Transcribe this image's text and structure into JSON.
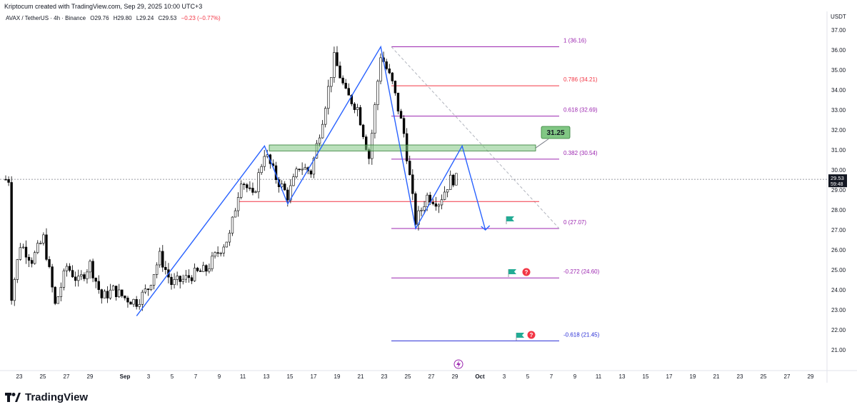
{
  "header": {
    "credit": "Kriptocum created with TradingView.com, Sep 29, 2025 10:00 UTC+3",
    "symbol": "AVAX / TetherUS · 4h · Binance",
    "open": "O29.76",
    "high": "H29.80",
    "low": "L29.24",
    "close": "C29.53",
    "change": "−0.23 (−0.77%)"
  },
  "price_axis": {
    "currency": "USDT",
    "current_price": "29.53",
    "countdown": "59:48"
  },
  "footer": {
    "brand": "TradingView"
  },
  "colors": {
    "up": "#000000",
    "down": "#000000",
    "fib": "#9c27b0",
    "fib_786": "#f23645",
    "pattern": "#2962ff",
    "zone": "#81c784",
    "support": "#f23645"
  },
  "chart_data": {
    "type": "candlestick",
    "symbol": "AVAX/USDT",
    "timeframe": "4h",
    "ylim": [
      20.5,
      37.5
    ],
    "y_ticks": [
      "37.00",
      "36.00",
      "35.00",
      "34.00",
      "33.00",
      "32.00",
      "31.00",
      "30.00",
      "29.00",
      "28.00",
      "27.00",
      "26.00",
      "25.00",
      "24.00",
      "23.00",
      "22.00",
      "21.00"
    ],
    "x_ticks": [
      "23",
      "25",
      "27",
      "29",
      "Sep",
      "3",
      "5",
      "7",
      "9",
      "11",
      "13",
      "15",
      "17",
      "19",
      "21",
      "23",
      "25",
      "27",
      "29",
      "Oct",
      "3",
      "5",
      "7",
      "9",
      "11",
      "13",
      "15",
      "17",
      "19",
      "21",
      "23",
      "25",
      "27",
      "29"
    ],
    "price_path": [
      [
        "Aug 22",
        22.9
      ],
      [
        "Aug 23",
        26.3
      ],
      [
        "Aug 24",
        25.5
      ],
      [
        "Aug 25",
        26.6
      ],
      [
        "Aug 26",
        23.2
      ],
      [
        "Aug 27",
        25.2
      ],
      [
        "Aug 28",
        24.4
      ],
      [
        "Aug 29",
        25.3
      ],
      [
        "Aug 30",
        23.6
      ],
      [
        "Aug 31",
        24.0
      ],
      [
        "Sep 1",
        23.6
      ],
      [
        "Sep 2",
        23.4
      ],
      [
        "Sep 3",
        24.1
      ],
      [
        "Sep 4",
        25.7
      ],
      [
        "Sep 5",
        24.3
      ],
      [
        "Sep 6",
        24.5
      ],
      [
        "Sep 7",
        24.8
      ],
      [
        "Sep 8",
        25.0
      ],
      [
        "Sep 9",
        25.9
      ],
      [
        "Sep 10",
        26.7
      ],
      [
        "Sep 11",
        29.6
      ],
      [
        "Sep 12",
        28.6
      ],
      [
        "Sep 13",
        30.9
      ],
      [
        "Sep 14",
        29.6
      ],
      [
        "Sep 15",
        28.7
      ],
      [
        "Sep 16",
        30.2
      ],
      [
        "Sep 17",
        29.9
      ],
      [
        "Sep 18",
        32.6
      ],
      [
        "Sep 19",
        35.6
      ],
      [
        "Sep 20",
        33.8
      ],
      [
        "Sep 21",
        33.1
      ],
      [
        "Sep 22",
        30.6
      ],
      [
        "Sep 23",
        35.8
      ],
      [
        "Sep 24",
        34.3
      ],
      [
        "Sep 25",
        31.8
      ],
      [
        "Sep 26",
        27.4
      ],
      [
        "Sep 27",
        28.7
      ],
      [
        "Sep 28",
        28.4
      ],
      [
        "Sep 29",
        29.53
      ]
    ],
    "fib_levels": [
      {
        "ratio": "1",
        "price": 36.16,
        "label": "1 (36.16)"
      },
      {
        "ratio": "0.786",
        "price": 34.21,
        "label": "0.786 (34.21)"
      },
      {
        "ratio": "0.618",
        "price": 32.69,
        "label": "0.618 (32.69)"
      },
      {
        "ratio": "0.382",
        "price": 30.54,
        "label": "0.382 (30.54)"
      },
      {
        "ratio": "0",
        "price": 27.07,
        "label": "0 (27.07)"
      },
      {
        "ratio": "-0.272",
        "price": 24.6,
        "label": "-0.272 (24.60)"
      },
      {
        "ratio": "-0.618",
        "price": 21.45,
        "label": "-0.618 (21.45)"
      }
    ],
    "resistance_zone": {
      "top": 31.25,
      "bottom": 30.95,
      "label": "31.25"
    },
    "support_line": 28.42,
    "pattern_points": [
      [
        "Sep 2",
        22.7
      ],
      [
        "Sep 13",
        31.2
      ],
      [
        "Sep 15",
        28.3
      ],
      [
        "Sep 23",
        36.16
      ],
      [
        "Sep 26",
        27.07
      ],
      [
        "Sep 30",
        31.2
      ],
      [
        "Oct 2",
        27.0
      ]
    ]
  }
}
